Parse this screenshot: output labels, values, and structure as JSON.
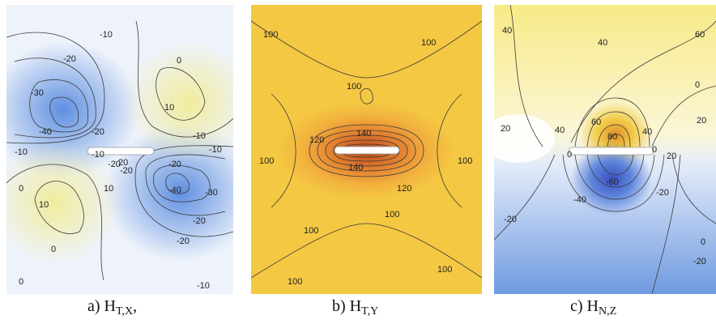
{
  "panels": [
    {
      "id": "a",
      "caption_prefix": "a) ",
      "symbol": "H",
      "subscript": "T,X",
      "caption_suffix": ",",
      "contour_labels": [
        "-10",
        "-20",
        "-30",
        "-40",
        "-20",
        "-10",
        "0",
        "10",
        "-10",
        "-20",
        "-20",
        "-10",
        "0",
        "10",
        "-20",
        "-30",
        "-40",
        "-20",
        "-10",
        "0",
        "10",
        "0",
        "-20",
        "-10",
        "20"
      ],
      "colors": {
        "negative": "#7aa6e8",
        "positive": "#f3efb0",
        "zero": "#ffffff"
      }
    },
    {
      "id": "b",
      "caption_prefix": "b) ",
      "symbol": "H",
      "subscript": "T,Y",
      "caption_suffix": "",
      "contour_labels": [
        "100",
        "100",
        "100",
        "120",
        "140",
        "100",
        "100",
        "120",
        "140",
        "100",
        "100",
        "100",
        "100"
      ],
      "colors": {
        "low": "#f2d24a",
        "mid": "#f0a23a",
        "high": "#c2501a"
      }
    },
    {
      "id": "c",
      "caption_prefix": "c) ",
      "symbol": "H",
      "subscript": "N,Z",
      "caption_suffix": "",
      "contour_labels": [
        "40",
        "40",
        "60",
        "0",
        "20",
        "20",
        "40",
        "60",
        "80",
        "40",
        "20",
        "0",
        "0",
        "-60",
        "-40",
        "-20",
        "-20",
        "-20",
        "0"
      ],
      "colors": {
        "positive": "#f5e67a",
        "negative": "#6e9ae0",
        "zero": "#ffffff"
      }
    }
  ]
}
